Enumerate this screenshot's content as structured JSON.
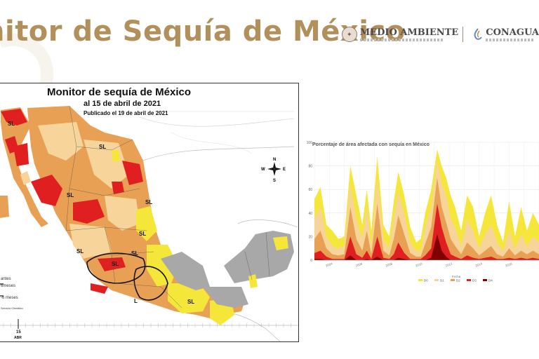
{
  "slide": {
    "title": "nitor de Sequía de México",
    "logos": [
      {
        "name": "MEDIO AMBIENTE",
        "icon": "government-seal-icon"
      },
      {
        "name": "CONAGUA",
        "icon": "conagua-drop-icon"
      }
    ]
  },
  "map": {
    "title": "Monitor de sequía de México",
    "date": "al 15 de abril de 2021",
    "published": "Publicado el 19 de abril de 2021",
    "region_labels": [
      "SL",
      "SL",
      "SL",
      "SL",
      "SL",
      "SL",
      "SL",
      "SL",
      "L",
      "SL"
    ],
    "compass": {
      "n": "N",
      "s": "S",
      "e": "E",
      "w": "W"
    },
    "legend_fragments": [
      "antes",
      "6meses",
      "-6 meses",
      "Servicio Climático"
    ],
    "timeline_tick": "15",
    "timeline_month": "ABR",
    "colors": {
      "D0": "#f5e63a",
      "D1": "#f7d59a",
      "D2": "#e8a055",
      "D3": "#e02020",
      "D4": "#800000",
      "land_gray": "#a8a8a8"
    }
  },
  "chart_data": {
    "type": "area",
    "title": "Porcentaje de área afectada con sequía en México",
    "xlabel": "Fecha",
    "ylim": [
      0,
      100
    ],
    "yticks": [
      0,
      20,
      40,
      60,
      80,
      100
    ],
    "x_tick_labels": [
      "2004",
      "2006",
      "2008",
      "2010",
      "2012",
      "2014",
      "2016"
    ],
    "x_range": [
      2003.0,
      2018.0
    ],
    "legend": [
      "D0",
      "D1",
      "D2",
      "D3",
      "D4"
    ],
    "colors": [
      "#f5e63a",
      "#f7d59a",
      "#e8a055",
      "#e02020",
      "#800000"
    ],
    "x": [
      2003.0,
      2003.4,
      2003.8,
      2004.2,
      2004.6,
      2005.0,
      2005.4,
      2005.8,
      2006.2,
      2006.5,
      2006.8,
      2007.2,
      2007.6,
      2008.0,
      2008.3,
      2008.6,
      2009.0,
      2009.4,
      2009.8,
      2010.1,
      2010.4,
      2010.8,
      2011.2,
      2011.5,
      2011.8,
      2012.1,
      2012.4,
      2012.8,
      2013.2,
      2013.6,
      2014.0,
      2014.4,
      2014.8,
      2015.2,
      2015.6,
      2016.0,
      2016.4,
      2016.8,
      2017.2,
      2017.6,
      2018.0
    ],
    "series": [
      {
        "name": "D0",
        "values": [
          52,
          62,
          30,
          25,
          18,
          20,
          80,
          55,
          30,
          60,
          25,
          88,
          30,
          20,
          50,
          75,
          55,
          28,
          15,
          18,
          40,
          60,
          94,
          80,
          70,
          55,
          45,
          25,
          55,
          45,
          20,
          40,
          55,
          30,
          15,
          50,
          20,
          45,
          25,
          40,
          30
        ]
      },
      {
        "name": "D1",
        "values": [
          35,
          45,
          20,
          12,
          10,
          12,
          65,
          35,
          18,
          45,
          12,
          70,
          18,
          10,
          35,
          58,
          40,
          15,
          8,
          8,
          28,
          45,
          85,
          65,
          55,
          35,
          28,
          12,
          35,
          25,
          10,
          22,
          30,
          15,
          8,
          25,
          10,
          22,
          12,
          20,
          15
        ]
      },
      {
        "name": "D2",
        "values": [
          18,
          25,
          10,
          5,
          4,
          5,
          45,
          18,
          8,
          25,
          5,
          48,
          8,
          4,
          18,
          38,
          22,
          6,
          3,
          3,
          14,
          28,
          70,
          45,
          32,
          18,
          12,
          5,
          15,
          10,
          4,
          8,
          12,
          5,
          3,
          10,
          4,
          8,
          5,
          8,
          5
        ]
      },
      {
        "name": "D3",
        "values": [
          6,
          8,
          3,
          1,
          1,
          1,
          20,
          5,
          2,
          8,
          1,
          20,
          2,
          1,
          5,
          15,
          6,
          1,
          1,
          1,
          4,
          10,
          48,
          28,
          15,
          5,
          3,
          1,
          4,
          2,
          1,
          2,
          3,
          1,
          1,
          2,
          1,
          2,
          1,
          2,
          1
        ]
      },
      {
        "name": "D4",
        "values": [
          1,
          1,
          0,
          0,
          0,
          0,
          4,
          0,
          0,
          1,
          0,
          3,
          0,
          0,
          0,
          2,
          1,
          0,
          0,
          0,
          0,
          2,
          22,
          8,
          3,
          0,
          0,
          0,
          0,
          0,
          0,
          0,
          0,
          0,
          0,
          0,
          0,
          0,
          0,
          0,
          0
        ]
      }
    ]
  }
}
